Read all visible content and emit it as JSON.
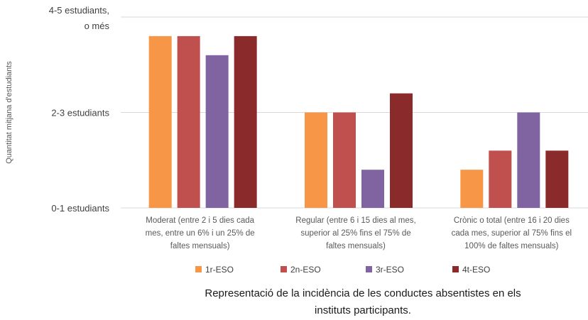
{
  "chart_data": {
    "type": "bar",
    "title": "Representació de la incidència de les conductes absentistes en els instituts participants.",
    "ylabel": "Quantitat mitjana d'estudiants",
    "xlabel": "",
    "ylim": [
      0,
      5
    ],
    "grid": true,
    "legend_position": "bottom",
    "y_ticks": [
      {
        "value": 0,
        "label": [
          "0-1 estudiants"
        ]
      },
      {
        "value": 2.5,
        "label": [
          "2-3 estudiants"
        ]
      },
      {
        "value": 5,
        "label": [
          "4-5 estudiants,",
          "o més"
        ]
      }
    ],
    "categories": [
      [
        "Moderat (entre 2 i 5 dies cada",
        "mes, entre un 6% i un 25% de",
        "faltes mensuals)"
      ],
      [
        "Regular (entre 6 i 15 dies al mes,",
        "superior al 25% fins el 75% de",
        "faltes mensuals)"
      ],
      [
        "Crònic o total (entre 16 i 20 dies",
        "cada mes, superior al 75% fins el",
        "100% de faltes mensuals)"
      ]
    ],
    "series": [
      {
        "name": "1r-ESO",
        "color": "#F79646",
        "values": [
          4.5,
          2.5,
          1.0
        ]
      },
      {
        "name": "2n-ESO",
        "color": "#C0504D",
        "values": [
          4.5,
          2.5,
          1.5
        ]
      },
      {
        "name": "3r-ESO",
        "color": "#8064A2",
        "values": [
          4.0,
          1.0,
          2.5
        ]
      },
      {
        "name": "4t-ESO",
        "color": "#8B2A2A",
        "values": [
          4.5,
          3.0,
          1.5
        ]
      }
    ]
  }
}
